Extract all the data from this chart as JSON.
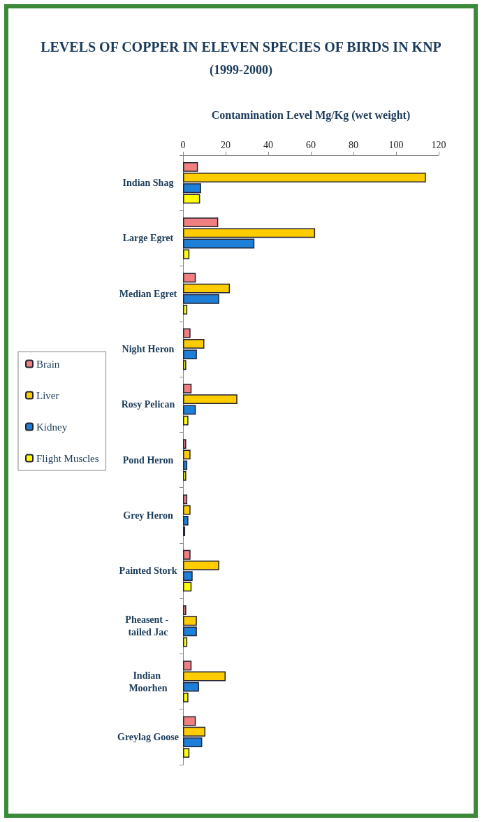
{
  "chart_data": {
    "type": "bar",
    "orientation": "horizontal",
    "title": "LEVELS OF COPPER IN ELEVEN SPECIES OF BIRDS IN KNP",
    "subtitle": "(1999-2000)",
    "xlabel": "Contamination Level Mg/Kg (wet weight)",
    "categories": [
      "Indian Shag",
      "Large Egret",
      "Median Egret",
      "Night Heron",
      "Rosy Pelican",
      "Pond Heron",
      "Grey Heron",
      "Painted Stork",
      "Pheasent - tailed Jac",
      "Indian Moorhen",
      "Greylag Goose"
    ],
    "series": [
      {
        "name": "Brain",
        "color": "#f08080",
        "values": [
          7,
          16.5,
          6,
          3.5,
          4,
          1.5,
          2,
          3.5,
          1.5,
          4,
          6
        ]
      },
      {
        "name": "Liver",
        "color": "#ffcc00",
        "values": [
          114,
          62,
          22,
          10,
          25.5,
          3.5,
          3.5,
          17,
          6.5,
          20,
          10.5
        ]
      },
      {
        "name": "Kidney",
        "color": "#1e7fd8",
        "values": [
          8.5,
          33.5,
          17,
          6.5,
          6,
          2,
          2.5,
          4.5,
          6.5,
          7.5,
          9
        ]
      },
      {
        "name": "Flight Muscles",
        "color": "#ffff00",
        "values": [
          8,
          3,
          2,
          1.5,
          2.5,
          1.5,
          1,
          4,
          2,
          2.5,
          3
        ]
      }
    ],
    "xlim": [
      0,
      120
    ],
    "xticks": [
      0,
      20,
      40,
      60,
      80,
      100,
      120
    ],
    "grid": false,
    "legend": "left"
  }
}
